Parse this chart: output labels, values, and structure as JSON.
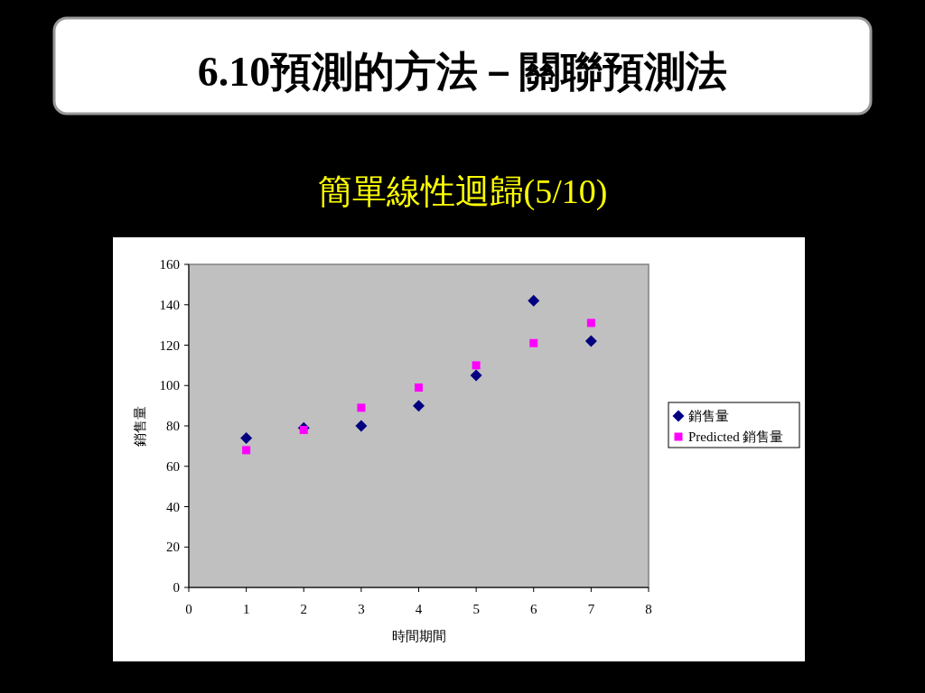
{
  "chart_data": {
    "type": "scatter",
    "title": "6.10預測的方法－關聯預測法",
    "subtitle": "簡單線性迴歸(5/10)",
    "xlabel": "時間期間",
    "ylabel": "銷售量",
    "x": [
      1,
      2,
      3,
      4,
      5,
      6,
      7
    ],
    "series": [
      {
        "name": "銷售量",
        "color": "#000080",
        "marker": "diamond",
        "values": [
          74,
          79,
          80,
          90,
          105,
          142,
          122
        ]
      },
      {
        "name": "Predicted 銷售量",
        "color": "#ff00ff",
        "marker": "square",
        "values": [
          68,
          78,
          89,
          99,
          110,
          121,
          131
        ]
      }
    ],
    "xlim": [
      0,
      8
    ],
    "xticks": [
      0,
      1,
      2,
      3,
      4,
      5,
      6,
      7,
      8
    ],
    "ylim": [
      0,
      160
    ],
    "yticks": [
      0,
      20,
      40,
      60,
      80,
      100,
      120,
      140,
      160
    ],
    "grid": false,
    "legend": "right"
  }
}
